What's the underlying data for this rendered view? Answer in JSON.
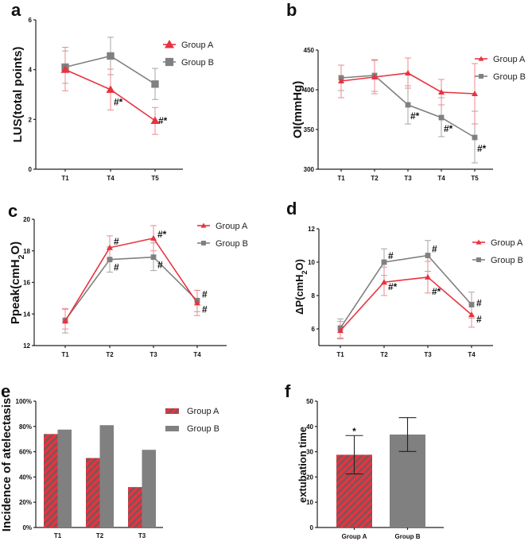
{
  "colors": {
    "group_a": "#e8333f",
    "group_b": "#808080",
    "group_a_err": "#ee8a8f",
    "group_b_err": "#a6a6a6",
    "hatch_dark": "#7a5558"
  },
  "chart_data": [
    {
      "panel": "a",
      "type": "line",
      "ylabel": "LUS(total points)",
      "xlabel": "",
      "categories": [
        "T1",
        "T4",
        "T5"
      ],
      "ylim": [
        0,
        6
      ],
      "yticks": [
        0,
        2,
        4,
        6
      ],
      "legend_position": "top-right",
      "series": [
        {
          "name": "Group A",
          "marker": "triangle",
          "values": [
            4.0,
            3.2,
            1.95
          ],
          "err_low": [
            3.15,
            2.38,
            1.4
          ],
          "err_high": [
            4.9,
            4.02,
            2.48
          ],
          "annotations": [
            "",
            "#*",
            "#*"
          ]
        },
        {
          "name": "Group B",
          "marker": "square",
          "values": [
            4.1,
            4.55,
            3.42
          ],
          "err_low": [
            3.45,
            3.8,
            2.8
          ],
          "err_high": [
            4.75,
            5.3,
            4.05
          ],
          "annotations": [
            "",
            "",
            ""
          ]
        }
      ]
    },
    {
      "panel": "b",
      "type": "line",
      "ylabel": "OI(mmHg)",
      "xlabel": "",
      "categories": [
        "T1",
        "T2",
        "T3",
        "T4",
        "T5"
      ],
      "ylim": [
        300,
        450
      ],
      "yticks": [
        300,
        350,
        400,
        450
      ],
      "legend_position": "top-right",
      "series": [
        {
          "name": "Group A",
          "marker": "triangle",
          "values": [
            411,
            416,
            421,
            397,
            395
          ],
          "err_low": [
            390,
            395,
            402,
            381,
            357
          ],
          "err_high": [
            431,
            437,
            440,
            413,
            433
          ],
          "annotations": [
            "",
            "",
            "",
            "",
            ""
          ]
        },
        {
          "name": "Group B",
          "marker": "square",
          "values": [
            415,
            418,
            381,
            365,
            340
          ],
          "err_low": [
            399,
            398,
            357,
            341,
            308
          ],
          "err_high": [
            431,
            438,
            405,
            390,
            373
          ],
          "annotations": [
            "",
            "",
            "#*",
            "#*",
            "#*"
          ]
        }
      ]
    },
    {
      "panel": "c",
      "type": "line",
      "ylabel": "Ppeak(cmH2O)",
      "ylabel_parts": [
        "Ppeak(cmH",
        "2",
        "O)"
      ],
      "xlabel": "",
      "categories": [
        "T1",
        "T2",
        "T3",
        "T4"
      ],
      "ylim": [
        12,
        20
      ],
      "yticks": [
        12,
        14,
        16,
        18,
        20
      ],
      "legend_position": "top-right",
      "series": [
        {
          "name": "Group A",
          "marker": "triangle",
          "values": [
            13.55,
            18.2,
            18.8,
            14.7
          ],
          "err_low": [
            13.05,
            17.5,
            18.0,
            13.9
          ],
          "err_high": [
            14.35,
            18.95,
            19.6,
            15.5
          ],
          "annotations": [
            "",
            "#",
            "#*",
            "#"
          ]
        },
        {
          "name": "Group B",
          "marker": "square",
          "values": [
            13.6,
            17.45,
            17.6,
            14.85
          ],
          "err_low": [
            12.8,
            16.65,
            16.75,
            14.15
          ],
          "err_high": [
            14.3,
            18.25,
            18.5,
            15.5
          ],
          "annotations": [
            "",
            "#",
            "#",
            "#"
          ]
        }
      ]
    },
    {
      "panel": "d",
      "type": "line",
      "ylabel": "ΔP(cmH2O)",
      "ylabel_parts": [
        "ΔP(cmH",
        "2",
        "O)"
      ],
      "xlabel": "",
      "categories": [
        "T1",
        "T2",
        "T3",
        "T4"
      ],
      "ylim": [
        5,
        12
      ],
      "yticks": [
        6,
        8,
        10,
        12
      ],
      "legend_position": "top-right",
      "series": [
        {
          "name": "Group A",
          "marker": "triangle",
          "values": [
            5.9,
            8.8,
            9.1,
            6.85
          ],
          "err_low": [
            5.4,
            8.0,
            8.15,
            6.1
          ],
          "err_high": [
            6.45,
            9.7,
            10.05,
            7.6
          ],
          "annotations": [
            "",
            "#*",
            "#*",
            "#"
          ]
        },
        {
          "name": "Group B",
          "marker": "square",
          "values": [
            6.05,
            10.0,
            10.4,
            7.45
          ],
          "err_low": [
            5.45,
            9.2,
            9.45,
            6.65
          ],
          "err_high": [
            6.6,
            10.8,
            11.3,
            8.2
          ],
          "annotations": [
            "",
            "#",
            "#",
            "#"
          ]
        }
      ]
    },
    {
      "panel": "e",
      "type": "bar",
      "ylabel": "Incidence of atelectasis",
      "xlabel": "",
      "categories": [
        "T1",
        "T2",
        "T3"
      ],
      "ylim": [
        0,
        100
      ],
      "yticks": [
        "0%",
        "20%",
        "40%",
        "60%",
        "80%",
        "100%"
      ],
      "legend_position": "top-right",
      "series": [
        {
          "name": "Group A",
          "pattern": "hatched",
          "values": [
            74,
            55,
            32
          ]
        },
        {
          "name": "Group B",
          "pattern": "solid",
          "values": [
            77.5,
            81,
            61.5
          ]
        }
      ]
    },
    {
      "panel": "f",
      "type": "bar",
      "ylabel": "extubation time",
      "xlabel": "",
      "categories": [
        "Group A",
        "Group B"
      ],
      "ylim": [
        0,
        50
      ],
      "yticks": [
        0,
        10,
        20,
        30,
        40,
        50
      ],
      "series": [
        {
          "name": "extubation time",
          "values": [
            28.8,
            36.8
          ],
          "err_low": [
            21.2,
            30.1
          ],
          "err_high": [
            36.4,
            43.5
          ],
          "patterns": [
            "hatched",
            "solid"
          ],
          "annotations": [
            "*",
            ""
          ]
        }
      ]
    }
  ]
}
